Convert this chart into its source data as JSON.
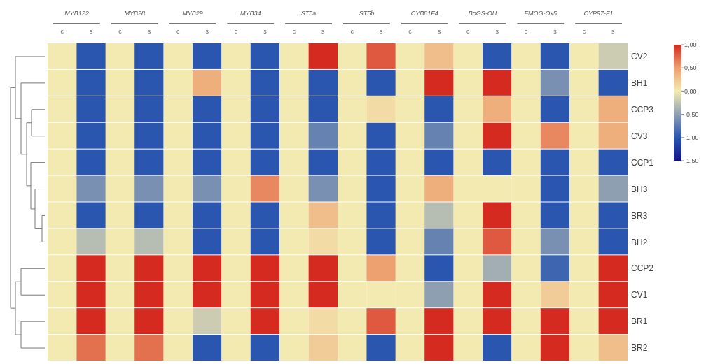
{
  "chart_data": {
    "type": "heatmap",
    "categories": [
      "c",
      "s",
      "c",
      "s",
      "c",
      "s",
      "c",
      "s",
      "c",
      "s",
      "c",
      "s",
      "c",
      "s",
      "c",
      "s",
      "c",
      "s",
      "c",
      "s"
    ],
    "annotations": [
      "MYB122",
      "MYB28",
      "MYB29",
      "MYB34",
      "ST5a",
      "ST5b",
      "CYB81F4",
      "BoGS-OH",
      "FMOG-Ox5",
      "CYP97-F1"
    ],
    "y_categories": [
      "CV2",
      "BH1",
      "CCP3",
      "CV3",
      "CCP1",
      "BH3",
      "BR3",
      "BH2",
      "CCP2",
      "CV1",
      "BR1",
      "BR2"
    ],
    "cells": [
      [
        0,
        -1,
        0,
        -1,
        0,
        -1,
        0,
        -1,
        0,
        1,
        0,
        0.8,
        0,
        0.3,
        0,
        -1,
        0,
        -1,
        0,
        -0.2
      ],
      [
        0,
        -1,
        0,
        -1,
        0,
        0.4,
        0,
        -1,
        0,
        -1,
        0,
        -1,
        0,
        1,
        0,
        1,
        0,
        -0.6,
        0,
        -1
      ],
      [
        0,
        -1,
        0,
        -1,
        0,
        -1,
        0,
        -1,
        0,
        -1,
        0,
        0.1,
        0,
        -1,
        0,
        0.4,
        0,
        -1,
        0,
        0.4
      ],
      [
        0,
        -1,
        0,
        -1,
        0,
        -1,
        0,
        -1,
        0,
        -0.7,
        0,
        -1,
        0,
        -0.7,
        0,
        1,
        0,
        0.6,
        0,
        0.4
      ],
      [
        0,
        -1,
        0,
        -1,
        0,
        -1,
        0,
        -1,
        0,
        -1,
        0,
        -1,
        0,
        -1,
        0,
        -1,
        0,
        -1,
        0,
        -1
      ],
      [
        0,
        -0.6,
        0,
        -0.6,
        0,
        -0.6,
        0,
        0.6,
        0,
        -0.6,
        0,
        -1,
        0,
        0.4,
        0,
        0,
        0,
        -1,
        0,
        -0.5
      ],
      [
        0,
        -1,
        0,
        -1,
        0,
        -1,
        0,
        -1,
        0,
        0.3,
        0,
        -1,
        0,
        -0.3,
        0,
        1,
        0,
        -1,
        0,
        -1
      ],
      [
        0,
        -0.3,
        0,
        -0.3,
        0,
        -1,
        0,
        -1,
        0,
        0.1,
        0,
        -1,
        0,
        -0.7,
        0,
        0.8,
        0,
        -0.6,
        0,
        -1
      ],
      [
        0,
        1,
        0,
        1,
        0,
        1,
        0,
        1,
        0,
        1,
        0,
        0.5,
        0,
        -1,
        0,
        -0.4,
        0,
        -0.9,
        0,
        1
      ],
      [
        0,
        1,
        0,
        1,
        0,
        1,
        0,
        1,
        0,
        1,
        0,
        0,
        0,
        -0.5,
        0,
        1,
        0,
        0.2,
        0,
        1
      ],
      [
        0,
        1,
        0,
        1,
        0,
        -0.2,
        0,
        1,
        0,
        0.1,
        0,
        0.8,
        0,
        1,
        0,
        1,
        0,
        1,
        0,
        1
      ],
      [
        0,
        0.7,
        0,
        0.7,
        0,
        -1,
        0,
        -1,
        0,
        0.2,
        0,
        -1,
        0,
        1,
        0,
        -1,
        0,
        1,
        0,
        0.3
      ]
    ],
    "clim": [
      -1.5,
      1
    ],
    "cticks": [
      {
        "value": 1,
        "label": "1,00"
      },
      {
        "value": 0.5,
        "label": "0,50"
      },
      {
        "value": 0,
        "label": "0,00"
      },
      {
        "value": -0.5,
        "label": "-0,50"
      },
      {
        "value": -1,
        "label": "-1,00"
      },
      {
        "value": -1.5,
        "label": "-1,50"
      }
    ]
  }
}
